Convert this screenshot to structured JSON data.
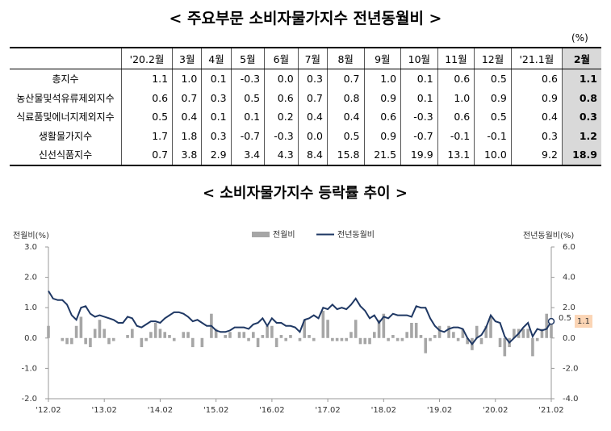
{
  "table_title": "< 주요부문 소비자물가지수 전년동월비 >",
  "unit": "(%)",
  "table": {
    "header": [
      "'20.2월",
      "3월",
      "4월",
      "5월",
      "6월",
      "7월",
      "8월",
      "9월",
      "10월",
      "11월",
      "12월",
      "'21.1월",
      "2월"
    ],
    "rows": [
      [
        "총지수",
        "1.1",
        "1.0",
        "0.1",
        "-0.3",
        "0.0",
        "0.3",
        "0.7",
        "1.0",
        "0.1",
        "0.6",
        "0.5",
        "0.6",
        "1.1"
      ],
      [
        "농산물및석유류제외지수",
        "0.6",
        "0.7",
        "0.3",
        "0.5",
        "0.6",
        "0.7",
        "0.8",
        "0.9",
        "0.1",
        "1.0",
        "0.9",
        "0.9",
        "0.8"
      ],
      [
        "식료품및에너지제외지수",
        "0.5",
        "0.4",
        "0.1",
        "0.1",
        "0.2",
        "0.4",
        "0.4",
        "0.6",
        "-0.3",
        "0.6",
        "0.5",
        "0.4",
        "0.3"
      ],
      [
        "생활물가지수",
        "1.7",
        "1.8",
        "0.3",
        "-0.7",
        "-0.3",
        "0.0",
        "0.5",
        "0.9",
        "-0.7",
        "-0.1",
        "-0.1",
        "0.3",
        "1.2"
      ],
      [
        "신선식품지수",
        "0.7",
        "3.8",
        "2.9",
        "3.4",
        "4.3",
        "8.4",
        "15.8",
        "21.5",
        "19.9",
        "13.1",
        "10.0",
        "9.2",
        "18.9"
      ]
    ]
  },
  "chart_data": {
    "type": "combo",
    "title": "< 소비자물가지수 등락률 추이 >",
    "ylabel": "전월비(%)",
    "y2label": "전년동월비(%)",
    "grid": false,
    "legend": "top",
    "categories": [
      "'12.02",
      null,
      null,
      null,
      null,
      null,
      null,
      null,
      null,
      null,
      null,
      null,
      "'13.02",
      null,
      null,
      null,
      null,
      null,
      null,
      null,
      null,
      null,
      null,
      null,
      "'14.02",
      null,
      null,
      null,
      null,
      null,
      null,
      null,
      null,
      null,
      null,
      null,
      "'15.02",
      null,
      null,
      null,
      null,
      null,
      null,
      null,
      null,
      null,
      null,
      null,
      "'16.02",
      null,
      null,
      null,
      null,
      null,
      null,
      null,
      null,
      null,
      null,
      null,
      "'17.02",
      null,
      null,
      null,
      null,
      null,
      null,
      null,
      null,
      null,
      null,
      null,
      "'18.02",
      null,
      null,
      null,
      null,
      null,
      null,
      null,
      null,
      null,
      null,
      null,
      "'19.02",
      null,
      null,
      null,
      null,
      null,
      null,
      null,
      null,
      null,
      null,
      null,
      "'20.02",
      null,
      null,
      null,
      null,
      null,
      null,
      null,
      null,
      null,
      null,
      null,
      "'21.02"
    ],
    "ylim": [
      -2,
      3
    ],
    "yticks": [
      {
        "value": -2,
        "label": "-2.0"
      },
      {
        "value": -1,
        "label": "-1.0"
      },
      {
        "value": 0,
        "label": "0.0"
      },
      {
        "value": 1,
        "label": "1.0"
      },
      {
        "value": 2,
        "label": "2.0"
      },
      {
        "value": 3,
        "label": "3.0"
      }
    ],
    "y2lim": [
      -4,
      6
    ],
    "y2ticks": [
      {
        "value": -4,
        "label": "-4.0"
      },
      {
        "value": -2,
        "label": "-2.0"
      },
      {
        "value": 0,
        "label": "0.0"
      },
      {
        "value": 2,
        "label": "2.0"
      },
      {
        "value": 4,
        "label": "4.0"
      },
      {
        "value": 6,
        "label": "6.0"
      }
    ],
    "series": [
      {
        "name": "전월비",
        "type": "bar",
        "color": "#a6a6a6",
        "values": [
          0.4,
          0.0,
          0.0,
          -0.1,
          -0.2,
          -0.2,
          0.4,
          0.7,
          -0.2,
          -0.3,
          0.3,
          0.6,
          0.3,
          -0.2,
          -0.1,
          0.0,
          0.0,
          0.1,
          0.3,
          0.0,
          -0.3,
          -0.1,
          0.2,
          0.5,
          0.3,
          0.2,
          0.1,
          -0.1,
          0.0,
          0.2,
          0.2,
          -0.3,
          0.0,
          -0.3,
          0.0,
          0.8,
          0.3,
          0.0,
          0.1,
          0.2,
          0.0,
          0.2,
          0.2,
          -0.1,
          0.2,
          -0.3,
          0.1,
          0.4,
          0.4,
          -0.3,
          0.1,
          -0.1,
          0.1,
          0.0,
          -0.1,
          0.6,
          0.1,
          -0.1,
          0.0,
          0.9,
          0.6,
          -0.1,
          -0.1,
          -0.1,
          -0.1,
          0.2,
          0.6,
          -0.2,
          -0.2,
          -0.2,
          0.2,
          0.6,
          0.8,
          -0.1,
          0.1,
          -0.1,
          -0.1,
          0.2,
          0.5,
          0.5,
          0.1,
          -0.5,
          -0.1,
          0.1,
          0.4,
          0.0,
          0.4,
          0.2,
          -0.1,
          0.3,
          -0.2,
          -0.4,
          0.4,
          -0.2,
          0.4,
          0.7,
          0.0,
          -0.3,
          -0.6,
          -0.3,
          0.3,
          0.3,
          0.3,
          0.3,
          -0.6,
          -0.1,
          0.3,
          0.8,
          0.5
        ]
      },
      {
        "name": "전년동월비",
        "type": "line",
        "axis": "y2",
        "color": "#1f3864",
        "values": [
          3.1,
          2.6,
          2.5,
          2.5,
          2.2,
          1.5,
          1.2,
          2.0,
          2.1,
          1.6,
          1.4,
          1.5,
          1.4,
          1.3,
          1.2,
          1.0,
          1.0,
          1.4,
          1.3,
          0.8,
          0.7,
          0.9,
          1.1,
          1.1,
          1.0,
          1.3,
          1.5,
          1.7,
          1.7,
          1.6,
          1.4,
          1.1,
          1.2,
          1.0,
          0.8,
          0.8,
          0.5,
          0.4,
          0.4,
          0.5,
          0.7,
          0.7,
          0.7,
          0.6,
          0.9,
          1.0,
          1.3,
          0.8,
          1.3,
          1.0,
          1.0,
          0.8,
          0.8,
          0.7,
          0.4,
          1.2,
          1.3,
          1.5,
          1.3,
          2.0,
          1.9,
          2.2,
          1.9,
          2.0,
          1.9,
          2.2,
          2.6,
          2.1,
          1.8,
          1.3,
          1.5,
          1.0,
          1.4,
          1.3,
          1.6,
          1.5,
          1.5,
          1.5,
          1.4,
          2.1,
          2.0,
          2.0,
          1.3,
          0.8,
          0.5,
          0.4,
          0.6,
          0.7,
          0.7,
          0.6,
          0.0,
          -0.4,
          0.0,
          0.2,
          0.7,
          1.5,
          1.1,
          1.0,
          0.1,
          -0.3,
          0.0,
          0.3,
          0.7,
          1.0,
          0.1,
          0.6,
          0.5,
          0.6,
          1.1
        ]
      }
    ],
    "annotations": [
      {
        "text": "0.5",
        "series": 0
      },
      {
        "text": "1.1",
        "series": 1
      }
    ]
  }
}
